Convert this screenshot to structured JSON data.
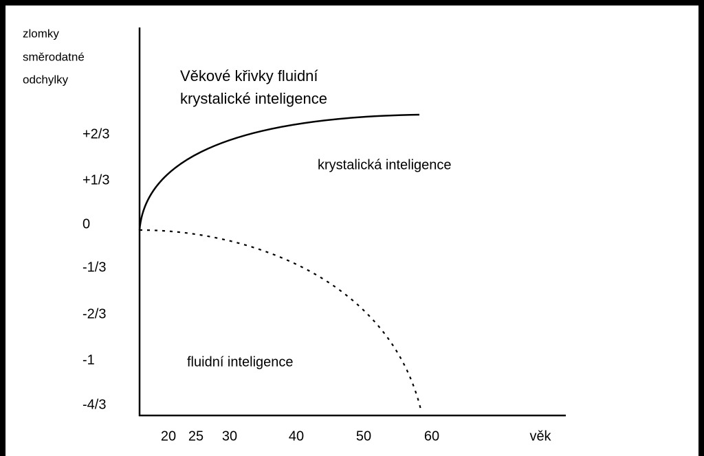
{
  "axis_title": [
    "zlomky",
    "směrodatné",
    "odchylky"
  ],
  "title": [
    "Věkové křivky fluidní",
    "krystalické inteligence"
  ],
  "y_labels": [
    "+2/3",
    "+1/3",
    "0",
    "-1/3",
    "-2/3",
    "-1",
    "-4/3"
  ],
  "x_labels": [
    "20",
    "25",
    "30",
    "40",
    "50",
    "60",
    "věk"
  ],
  "curve_labels": {
    "crystallized": "krystalická inteligence",
    "fluid": "fluidní inteligence"
  }
}
